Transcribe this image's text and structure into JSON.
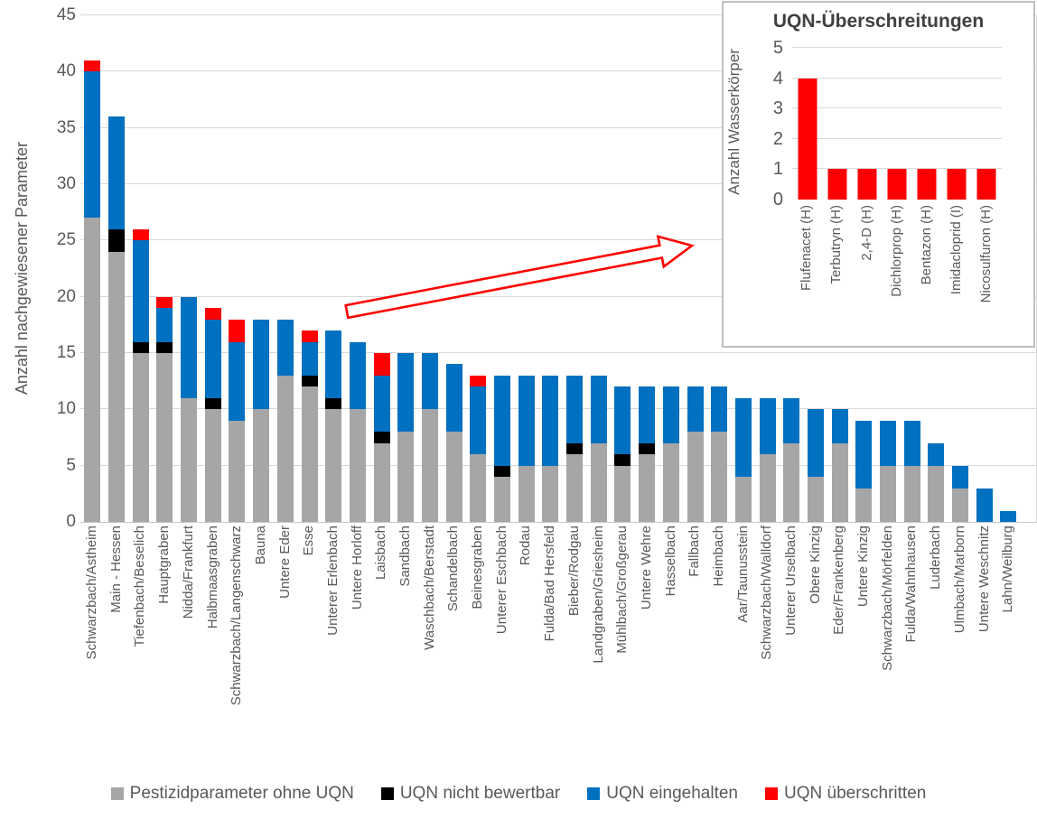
{
  "colors": {
    "gray": "#A6A6A6",
    "black": "#000000",
    "blue": "#0070C0",
    "red": "#FF0000",
    "gridline": "#D9D9D9",
    "axis_text": "#595959",
    "title_text": "#404040",
    "inset_border": "#BFBFBF",
    "arrow_outline": "#FF0000"
  },
  "chart_data": [
    {
      "id": "main",
      "type": "bar",
      "stacked": true,
      "title": "",
      "xlabel": "",
      "ylabel": "Anzahl nachgewiesener Parameter",
      "ylim": [
        0,
        45
      ],
      "ytick_step": 5,
      "grid": true,
      "legend_position": "bottom",
      "categories": [
        "Schwarzbach/Astheim",
        "Main - Hessen",
        "Tiefenbach/Beselich",
        "Hauptgraben",
        "Nidda/Frankfurt",
        "Halbmaasgraben",
        "Schwarzbach/Langenschwarz",
        "Bauna",
        "Untere Eder",
        "Esse",
        "Unterer Erlenbach",
        "Untere Horloff",
        "Laisbach",
        "Sandbach",
        "Waschbach/Berstadt",
        "Schandelbach",
        "Beinesgraben",
        "Unterer Eschbach",
        "Rodau",
        "Fulda/Bad Hersfeld",
        "Bieber/Rodgau",
        "Landgraben/Griesheim",
        "Mühlbach/Großgerau",
        "Untere Wehre",
        "Hasselbach",
        "Fallbach",
        "Heimbach",
        "Aar/Taunusstein",
        "Schwarzbach/Walldorf",
        "Unterer Urselbach",
        "Obere Kinzig",
        "Eder/Frankenberg",
        "Untere Kinzig",
        "Schwarzbach/Mörfelden",
        "Fulda/Wahnhausen",
        "Luderbach",
        "Ulmbach/Marborn",
        "Untere Weschnitz",
        "Lahn/Weilburg"
      ],
      "series": [
        {
          "name": "Pestizidparameter ohne UQN",
          "color": "#A6A6A6",
          "values": [
            27,
            24,
            15,
            15,
            11,
            10,
            9,
            10,
            13,
            12,
            10,
            10,
            7,
            8,
            10,
            8,
            6,
            4,
            5,
            5,
            6,
            7,
            5,
            6,
            7,
            8,
            8,
            4,
            6,
            7,
            4,
            7,
            3,
            5,
            5,
            5,
            3,
            0,
            0
          ]
        },
        {
          "name": "UQN nicht bewertbar",
          "color": "#000000",
          "values": [
            0,
            2,
            1,
            1,
            0,
            1,
            0,
            0,
            0,
            1,
            1,
            0,
            1,
            0,
            0,
            0,
            0,
            1,
            0,
            0,
            1,
            0,
            1,
            1,
            0,
            0,
            0,
            0,
            0,
            0,
            0,
            0,
            0,
            0,
            0,
            0,
            0,
            0,
            0
          ]
        },
        {
          "name": "UQN eingehalten",
          "color": "#0070C0",
          "values": [
            13,
            10,
            9,
            3,
            9,
            7,
            7,
            8,
            5,
            3,
            6,
            6,
            5,
            7,
            5,
            6,
            6,
            8,
            8,
            8,
            6,
            6,
            6,
            5,
            5,
            4,
            4,
            7,
            5,
            4,
            6,
            3,
            6,
            4,
            4,
            2,
            2,
            3,
            1
          ]
        },
        {
          "name": "UQN überschritten",
          "color": "#FF0000",
          "values": [
            1,
            0,
            1,
            1,
            0,
            1,
            2,
            0,
            0,
            1,
            0,
            0,
            2,
            0,
            0,
            0,
            1,
            0,
            0,
            0,
            0,
            0,
            0,
            0,
            0,
            0,
            0,
            0,
            0,
            0,
            0,
            0,
            0,
            0,
            0,
            0,
            0,
            0,
            0
          ]
        }
      ]
    },
    {
      "id": "inset",
      "type": "bar",
      "title": "UQN-Überschreitungen",
      "xlabel": "",
      "ylabel": "Anzahl Wasserkörper",
      "ylim": [
        0,
        5
      ],
      "ytick_step": 1,
      "grid": true,
      "bar_color": "#FF0000",
      "categories": [
        "Flufenacet (H)",
        "Terbutryn (H)",
        "2,4-D (H)",
        "Dichlorprop (H)",
        "Bentazon (H)",
        "Imidacloprid (I)",
        "Nicosulfuron (H)"
      ],
      "values": [
        4,
        1,
        1,
        1,
        1,
        1,
        1
      ]
    }
  ],
  "annotation": {
    "type": "arrow",
    "color": "#FF0000",
    "description": "hollow red arrow pointing from the main chart to the inset chart"
  }
}
